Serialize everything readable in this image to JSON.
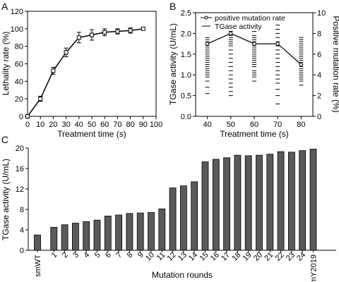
{
  "chart_data": [
    {
      "panel": "A",
      "type": "line",
      "xlabel": "Treatment time (s)",
      "ylabel": "Lethality rate (%)",
      "xlim": [
        0,
        100
      ],
      "ylim": [
        0,
        120
      ],
      "xticks": [
        0,
        10,
        20,
        30,
        40,
        50,
        60,
        70,
        80,
        90,
        100
      ],
      "yticks": [
        0,
        20,
        40,
        60,
        80,
        100,
        120
      ],
      "series": [
        {
          "x": [
            0,
            10,
            20,
            30,
            40,
            50,
            60,
            70,
            80,
            90
          ],
          "values": [
            0,
            20,
            52,
            73,
            90,
            93,
            96,
            97,
            98,
            100
          ],
          "error": [
            0,
            3,
            4,
            5,
            6,
            6,
            4,
            3,
            3,
            1
          ]
        }
      ]
    },
    {
      "panel": "B",
      "type": "line",
      "xlabel": "Treatment time (s)",
      "ylabel": "TGase activity (U/mL)",
      "ylabel_right": "Positive mutation rate (%)",
      "xticks": [
        40,
        50,
        60,
        70,
        80
      ],
      "ylim": [
        0,
        2.5
      ],
      "yticks": [
        0.0,
        0.5,
        1.0,
        1.5,
        2.0,
        2.5
      ],
      "ylim_right": [
        0,
        10
      ],
      "yticks_right": [
        0,
        2,
        4,
        6,
        8,
        10
      ],
      "legend": [
        "positive mutation rate",
        "TGase activity"
      ],
      "legend_position": "top-left",
      "series": [
        {
          "name": "positive mutation rate",
          "x": [
            40,
            50,
            60,
            70,
            80
          ],
          "values": [
            7,
            8,
            7,
            7,
            5
          ],
          "axis": "right"
        }
      ],
      "scatter_activity": [
        {
          "x": 40,
          "values": [
            0.55,
            0.7,
            0.85,
            0.95,
            1.0,
            1.05,
            1.1,
            1.15,
            1.2,
            1.25,
            1.3,
            1.35,
            1.4,
            1.45,
            1.5,
            1.55,
            1.6,
            1.65,
            1.7,
            1.75,
            1.8,
            1.85,
            1.9
          ]
        },
        {
          "x": 50,
          "values": [
            0.5,
            0.6,
            0.7,
            0.8,
            0.9,
            1.0,
            1.1,
            1.2,
            1.3,
            1.4,
            1.5,
            1.6,
            1.7,
            1.75,
            1.8,
            1.85,
            1.9,
            1.95,
            2.05
          ]
        },
        {
          "x": 60,
          "values": [
            0.85,
            0.95,
            1.0,
            1.05,
            1.1,
            1.2,
            1.25,
            1.3,
            1.35,
            1.4,
            1.45,
            1.5,
            1.55,
            1.6,
            1.65,
            1.7,
            1.75,
            1.8,
            1.85,
            1.9,
            1.95,
            2.05
          ]
        },
        {
          "x": 70,
          "values": [
            0.3,
            0.5,
            0.65,
            0.8,
            0.9,
            1.0,
            1.1,
            1.2,
            1.3,
            1.4,
            1.5,
            1.6,
            1.7,
            1.8,
            1.9,
            2.0,
            2.1,
            2.2
          ]
        },
        {
          "x": 80,
          "values": [
            0.75,
            0.85,
            0.9,
            0.95,
            1.0,
            1.05,
            1.1,
            1.15,
            1.2,
            1.25,
            1.3,
            1.35,
            1.4,
            1.45,
            1.5,
            1.55,
            1.6,
            1.65,
            1.7,
            1.75,
            1.8,
            1.85,
            1.9
          ]
        }
      ]
    },
    {
      "panel": "C",
      "type": "bar",
      "xlabel": "Mutation rounds",
      "ylabel": "TGase activity (U/mL)",
      "ylim": [
        0,
        20
      ],
      "yticks": [
        0,
        4,
        8,
        12,
        16,
        20
      ],
      "categories": [
        "smWT",
        "1",
        "2",
        "3",
        "4",
        "5",
        "6",
        "7",
        "8",
        "9",
        "10",
        "11",
        "12",
        "13",
        "14",
        "15",
        "16",
        "17",
        "18",
        "19",
        "20",
        "21",
        "22",
        "23",
        "24",
        "smY2019"
      ],
      "values": [
        3.0,
        4.5,
        5.0,
        5.3,
        5.6,
        5.9,
        6.7,
        6.9,
        7.2,
        7.3,
        7.4,
        8.1,
        12.2,
        12.6,
        13.4,
        17.3,
        17.8,
        18.1,
        18.6,
        18.5,
        18.6,
        18.8,
        19.3,
        19.2,
        19.5,
        19.8
      ]
    }
  ],
  "panel_labels": [
    "A",
    "B",
    "C"
  ]
}
